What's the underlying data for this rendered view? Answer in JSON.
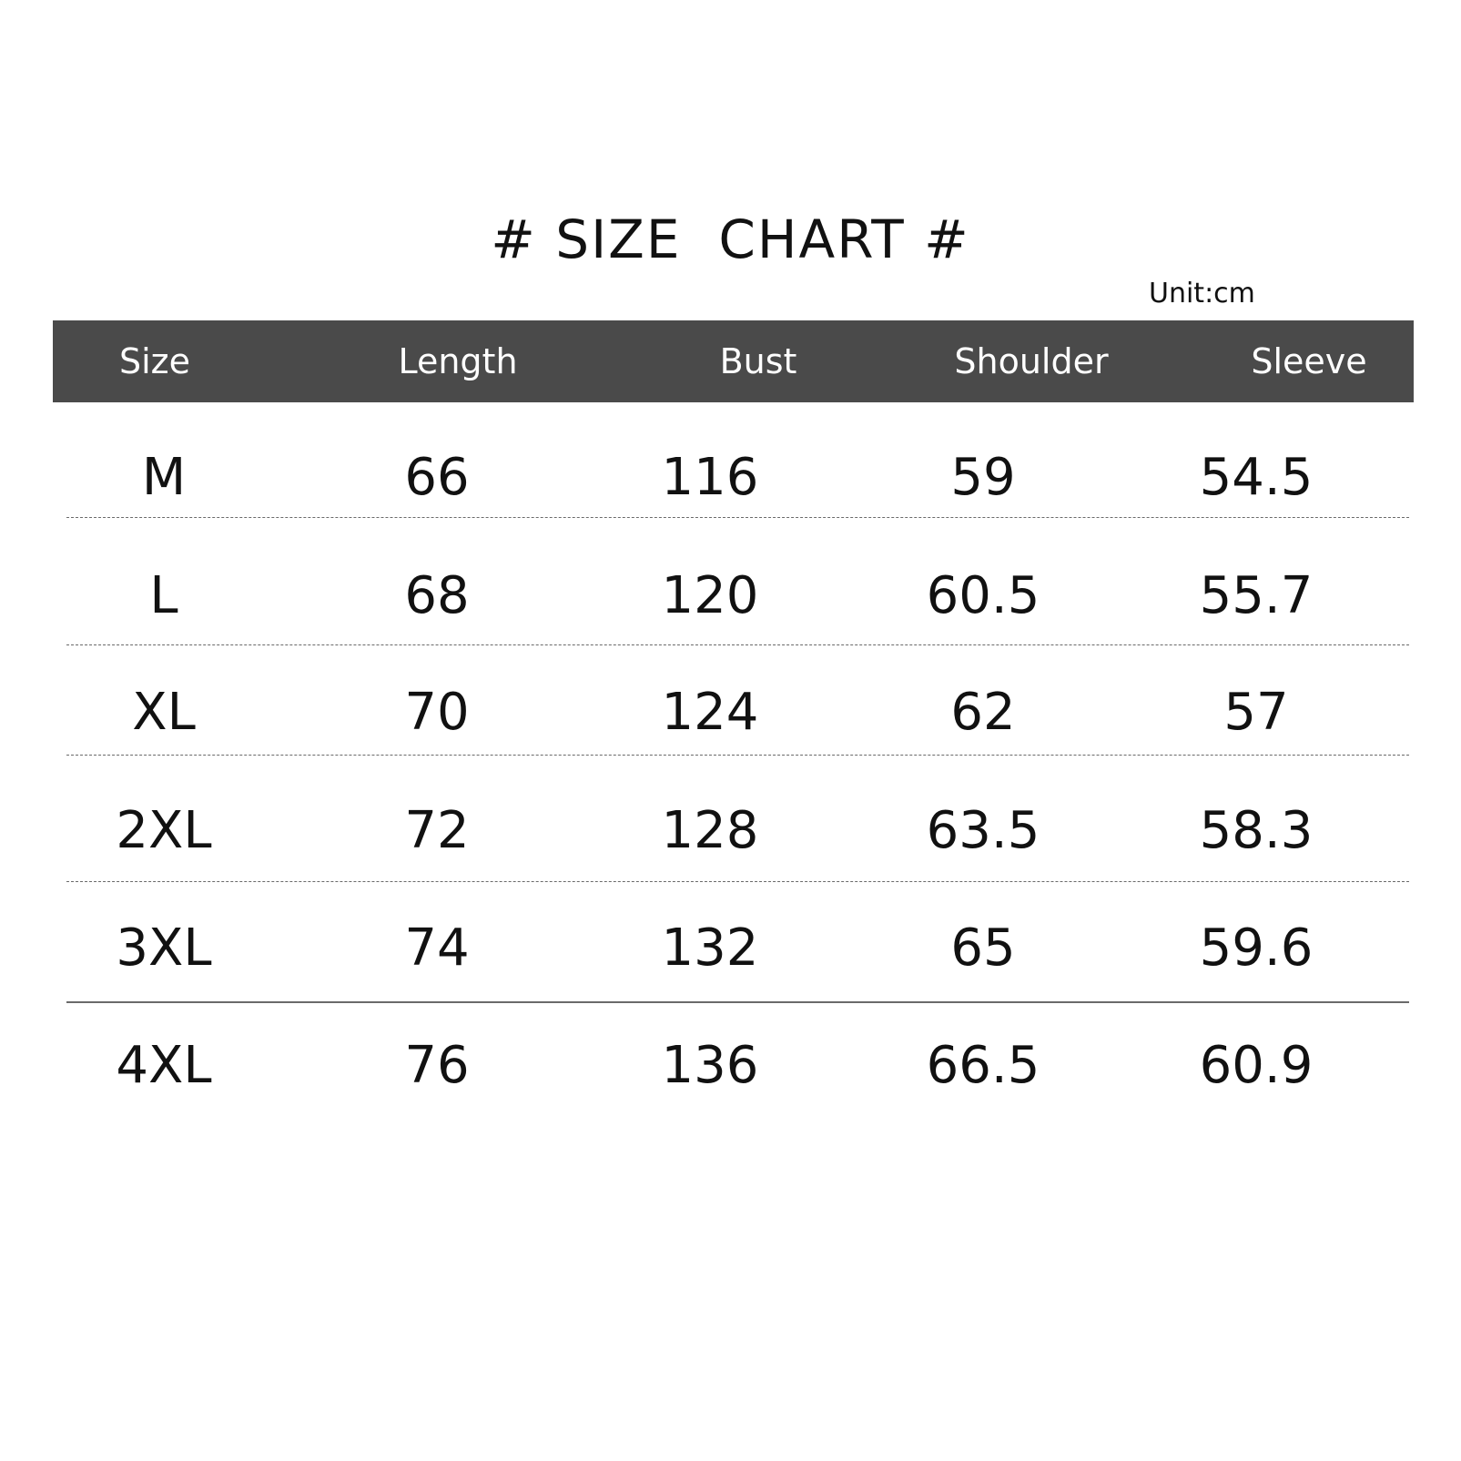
{
  "title": "# SIZE  CHART #",
  "unit": "Unit:cm",
  "table": {
    "headers": [
      "Size",
      "Length",
      "Bust",
      "Shoulder",
      "Sleeve"
    ],
    "rows": [
      [
        "M",
        "66",
        "116",
        "59",
        "54.5"
      ],
      [
        "L",
        "68",
        "120",
        "60.5",
        "55.7"
      ],
      [
        "XL",
        "70",
        "124",
        "62",
        "57"
      ],
      [
        "2XL",
        "72",
        "128",
        "63.5",
        "58.3"
      ],
      [
        "3XL",
        "74",
        "132",
        "65",
        "59.6"
      ],
      [
        "4XL",
        "76",
        "136",
        "66.5",
        "60.9"
      ]
    ]
  },
  "colors": {
    "header_bg": "#4a4a4a",
    "header_text": "#ffffff",
    "body_text": "#111111"
  }
}
